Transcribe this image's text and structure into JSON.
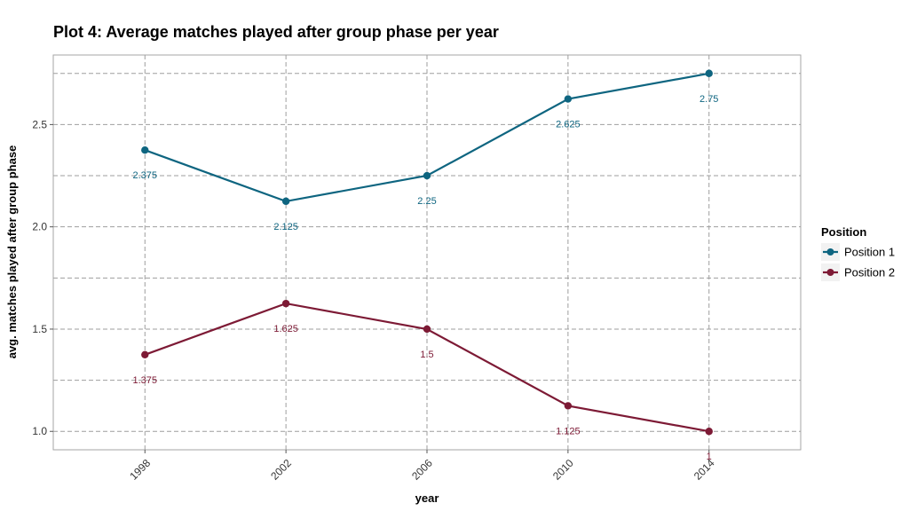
{
  "chart_data": {
    "type": "line",
    "title": "Plot 4: Average matches played after group phase per year",
    "xlabel": "year",
    "ylabel": "avg. matches played after group phase",
    "x": [
      1998,
      2002,
      2006,
      2010,
      2014
    ],
    "x_tick_labels": [
      "1998",
      "2002",
      "2006",
      "2010",
      "2014"
    ],
    "xlim": [
      1995.4,
      2016.6
    ],
    "ylim": [
      0.91,
      2.84
    ],
    "y_ticks": [
      1.0,
      1.5,
      2.0,
      2.5
    ],
    "y_tick_labels": [
      "1.0",
      "1.5",
      "2.0",
      "2.5"
    ],
    "y_minor_ticks": [
      1.25,
      1.75,
      2.25,
      2.75
    ],
    "grid": true,
    "legend": {
      "title": "Position",
      "placement": "right"
    },
    "series": [
      {
        "name": "Position 1",
        "color": "#0e6580",
        "values": [
          2.375,
          2.125,
          2.25,
          2.625,
          2.75
        ],
        "labels": [
          "2.375",
          "2.125",
          "2.25",
          "2.625",
          "2.75"
        ]
      },
      {
        "name": "Position 2",
        "color": "#7d1a35",
        "values": [
          1.375,
          1.625,
          1.5,
          1.125,
          1.0
        ],
        "labels": [
          "1.375",
          "1.625",
          "1.5",
          "1.125",
          "1"
        ]
      }
    ]
  }
}
